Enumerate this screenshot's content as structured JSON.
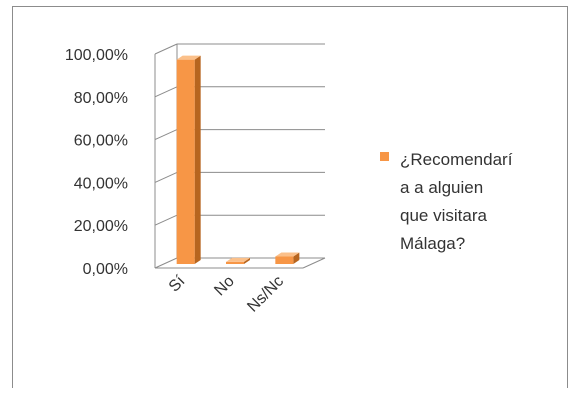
{
  "chart_data": {
    "type": "bar",
    "categories": [
      "Sí",
      "No",
      "Ns/Nc"
    ],
    "series": [
      {
        "name": "¿Recomendaría a alguien que visitara Málaga?",
        "values": [
          95.5,
          1.0,
          3.5
        ]
      }
    ],
    "ylim": [
      0,
      100
    ],
    "yticks": [
      "0,00%",
      "20,00%",
      "40,00%",
      "60,00%",
      "80,00%",
      "100,00%"
    ],
    "grid": true,
    "legend_position": "right"
  },
  "legend": {
    "text": "¿Recomendarí\na a alguien\nque visitara\nMálaga?"
  },
  "colors": {
    "bar_front": "#f79646",
    "bar_side": "#b7651f",
    "bar_top": "#fbc08a",
    "grid": "#8c8c8c",
    "swatch": "#f79646"
  }
}
